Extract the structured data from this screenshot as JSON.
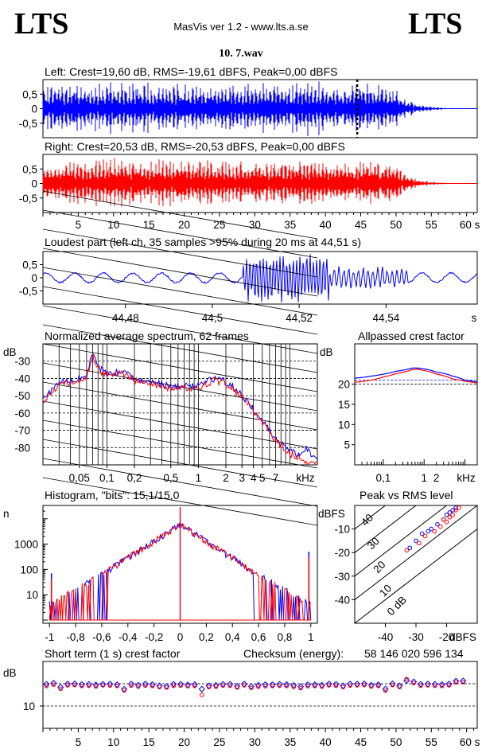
{
  "header": {
    "logo_left": "LTS",
    "logo_right": "LTS",
    "version": "MasVis ver 1.2 - www.lts.a.se",
    "filename": "10. 7.wav"
  },
  "colors": {
    "left": "#0000ff",
    "right": "#ff0000",
    "frame": "#000000"
  },
  "chart_data": [
    {
      "id": "left-waveform",
      "type": "line",
      "title": "Left: Crest=19,60 dB, RMS=-19,61 dBFS, Peak=0,00 dBFS",
      "ylim": [
        -1,
        1
      ],
      "ytick_labels": [
        "0,5",
        "0",
        "-0,5"
      ],
      "xlim": [
        0,
        61.5
      ],
      "envelope_x": [
        0,
        1,
        5,
        10,
        20,
        30,
        40,
        45,
        48,
        50,
        51,
        53,
        55,
        57,
        60
      ],
      "envelope_y": [
        0.6,
        0.9,
        0.95,
        0.95,
        0.95,
        0.95,
        0.95,
        0.95,
        0.9,
        0.7,
        0.45,
        0.2,
        0.08,
        0.03,
        0.01
      ],
      "loudest_marker_s": 44.51
    },
    {
      "id": "right-waveform",
      "type": "line",
      "title": "Right: Crest=20,53 dB, RMS=-20,53 dBFS, Peak=0,00 dBFS",
      "ylim": [
        -1,
        1
      ],
      "ytick_labels": [
        "0,5",
        "0",
        "-0,5"
      ],
      "xlim": [
        0,
        61.5
      ],
      "xtick_labels": [
        "5",
        "10",
        "15",
        "20",
        "25",
        "30",
        "35",
        "40",
        "45",
        "50",
        "55",
        "60 s"
      ],
      "envelope_x": [
        0,
        1,
        5,
        10,
        20,
        30,
        40,
        45,
        48,
        50,
        51,
        53,
        55,
        57,
        60
      ],
      "envelope_y": [
        0.55,
        0.8,
        0.9,
        0.9,
        0.9,
        0.9,
        0.9,
        0.9,
        0.85,
        0.65,
        0.4,
        0.18,
        0.07,
        0.03,
        0.01
      ]
    },
    {
      "id": "loudest-part",
      "type": "line",
      "title": "Loudest part (left  ch, 35 samples >95% during 20 ms at 44,51 s)",
      "ylim": [
        -1,
        1
      ],
      "ytick_labels": [
        "0,5",
        "0",
        "-0,5"
      ],
      "xlim": [
        44.461,
        44.561
      ],
      "xtick_labels": [
        "44,48",
        "44,5",
        "44,52",
        "44,54",
        "s"
      ]
    },
    {
      "id": "spectrum",
      "type": "line",
      "title": "Normalized average spectrum, 62 frames",
      "ylabel": "dB",
      "ytick_labels": [
        "-30",
        "-40",
        "-50",
        "-60",
        "-70",
        "-80"
      ],
      "xtick_labels": [
        "0,05",
        "0,1",
        "0,2",
        "0,5",
        "1",
        "2",
        "3",
        "4",
        "5",
        "7",
        "kHz"
      ],
      "xlim_khz": [
        0.02,
        20
      ],
      "ylim": [
        -90,
        -20
      ],
      "series": [
        {
          "freq_khz": [
            0.02,
            0.03,
            0.04,
            0.05,
            0.06,
            0.07,
            0.08,
            0.1,
            0.15,
            0.2,
            0.3,
            0.5,
            1,
            1.5,
            2,
            3,
            4,
            5,
            7,
            10,
            12,
            15,
            20
          ],
          "db": [
            -52,
            -42,
            -42,
            -40,
            -38,
            -25,
            -34,
            -37,
            -36,
            -40,
            -42,
            -45,
            -44,
            -40,
            -42,
            -50,
            -58,
            -65,
            -75,
            -82,
            -84,
            -80,
            -88
          ]
        },
        {
          "freq_khz": [
            0.02,
            0.03,
            0.04,
            0.05,
            0.06,
            0.07,
            0.08,
            0.1,
            0.15,
            0.2,
            0.3,
            0.5,
            1,
            1.5,
            2,
            3,
            4,
            5,
            7,
            10,
            12,
            15,
            20
          ],
          "db": [
            -53,
            -43,
            -43,
            -41,
            -39,
            -27,
            -35,
            -38,
            -37,
            -41,
            -43,
            -46,
            -45,
            -41,
            -43,
            -51,
            -59,
            -66,
            -76,
            -84,
            -85,
            -88,
            -89
          ]
        }
      ]
    },
    {
      "id": "allpassed-crest",
      "type": "line",
      "title": "Allpassed crest factor",
      "ylabel": "dB",
      "ytick_labels": [
        "20",
        "15",
        "10",
        "5"
      ],
      "xtick_labels": [
        "0,1",
        "1",
        "2",
        "kHz"
      ],
      "ylim": [
        0,
        30
      ],
      "series": [
        {
          "freq_khz": [
            0.02,
            0.05,
            0.1,
            0.2,
            0.5,
            0.7,
            1,
            2,
            5,
            10,
            20
          ],
          "db": [
            21.5,
            22,
            22.5,
            23.2,
            24,
            24,
            23.8,
            23,
            22,
            21,
            20.5
          ]
        },
        {
          "freq_khz": [
            0.02,
            0.05,
            0.1,
            0.2,
            0.5,
            0.7,
            1,
            2,
            5,
            10,
            20
          ],
          "db": [
            20.5,
            21,
            21.8,
            22.6,
            23.6,
            23.7,
            23.4,
            22.5,
            21.3,
            20.7,
            20.3
          ]
        }
      ],
      "reference_lines_db": [
        21,
        20
      ]
    },
    {
      "id": "histogram",
      "type": "line",
      "title": "Histogram, \"bits\": 15,1/15,0",
      "ylabel": "n",
      "ytick_labels": [
        "1000",
        "100",
        "10"
      ],
      "xtick_labels": [
        "-1",
        "-0,8",
        "-0,6",
        "-0,4",
        "-0,2",
        "0",
        "0,2",
        "0,4",
        "0,6",
        "0,8",
        "1"
      ],
      "xlim": [
        -1.05,
        1.05
      ]
    },
    {
      "id": "peak-vs-rms",
      "type": "scatter",
      "title": "Peak vs RMS level",
      "ylabel": "dBFS",
      "xlabel": "dBFS",
      "ytick_labels": [
        "-10",
        "-20",
        "-30",
        "-40"
      ],
      "xtick_labels": [
        "-40",
        "-30",
        "-20"
      ],
      "xlim": [
        -50,
        -10
      ],
      "ylim": [
        -50,
        0
      ],
      "diag_labels": [
        "40",
        "30",
        "20",
        "10",
        "0 dB"
      ],
      "left_points": [
        [
          -28,
          -12
        ],
        [
          -25,
          -10
        ],
        [
          -23,
          -8
        ],
        [
          -21,
          -6
        ],
        [
          -20,
          -4
        ],
        [
          -19,
          -3
        ],
        [
          -18,
          -2
        ],
        [
          -17,
          -1
        ],
        [
          -30,
          -15
        ],
        [
          -32,
          -18
        ],
        [
          -26,
          -11
        ]
      ],
      "right_points": [
        [
          -27,
          -13
        ],
        [
          -24,
          -11
        ],
        [
          -22,
          -9
        ],
        [
          -20,
          -7
        ],
        [
          -19,
          -5
        ],
        [
          -18,
          -4
        ],
        [
          -17,
          -2
        ],
        [
          -16,
          -1
        ],
        [
          -29,
          -16
        ],
        [
          -33,
          -19
        ],
        [
          -21,
          -6
        ]
      ]
    },
    {
      "id": "short-term-crest",
      "type": "scatter",
      "title": "Short term (1 s) crest factor",
      "ylabel": "dB",
      "ytick_labels": [
        "10"
      ],
      "xtick_labels": [
        "5",
        "10",
        "15",
        "20",
        "25",
        "30",
        "35",
        "40",
        "45",
        "50",
        "55",
        "60 s"
      ],
      "checksum_label": "Checksum (energy):",
      "checksum_value": "58 146 020 596 134",
      "ylim": [
        0,
        30
      ],
      "xlim": [
        0,
        61.5
      ],
      "left_db": [
        19.8,
        20.3,
        18.5,
        19.9,
        20.0,
        19.7,
        19.8,
        19.5,
        19.8,
        19.9,
        19.6,
        17.6,
        19.9,
        19.4,
        19.9,
        19.7,
        19.1,
        18.9,
        19.8,
        19.8,
        19.5,
        19.7,
        17.6,
        19.1,
        19.3,
        19.8,
        19.8,
        18.9,
        19.9,
        18.8,
        19.4,
        19.6,
        19.6,
        19.8,
        19.7,
        19.3,
        18.7,
        19.6,
        19.6,
        19.4,
        19.9,
        19.8,
        19.1,
        19.9,
        19.9,
        20.0,
        19.4,
        19.6,
        17.7,
        20.0,
        19.1,
        21.4,
        20.9,
        19.8,
        19.9,
        19.8,
        19.7,
        19.9,
        21.2,
        21.3
      ],
      "right_db": [
        19.0,
        19.6,
        17.7,
        19.3,
        19.4,
        19.0,
        19.1,
        18.8,
        19.3,
        19.2,
        19.0,
        17.0,
        19.2,
        18.7,
        19.2,
        19.0,
        18.5,
        18.3,
        19.1,
        19.2,
        18.9,
        19.0,
        15.0,
        18.5,
        18.7,
        19.2,
        19.1,
        18.3,
        19.3,
        18.1,
        18.7,
        18.9,
        19.0,
        19.1,
        19.0,
        18.6,
        18.0,
        18.9,
        19.0,
        18.7,
        19.3,
        19.1,
        18.5,
        19.2,
        19.3,
        19.4,
        18.8,
        19.0,
        16.9,
        19.4,
        18.5,
        22.1,
        20.3,
        19.1,
        19.3,
        19.1,
        19.0,
        19.3,
        20.6,
        20.7
      ]
    }
  ]
}
